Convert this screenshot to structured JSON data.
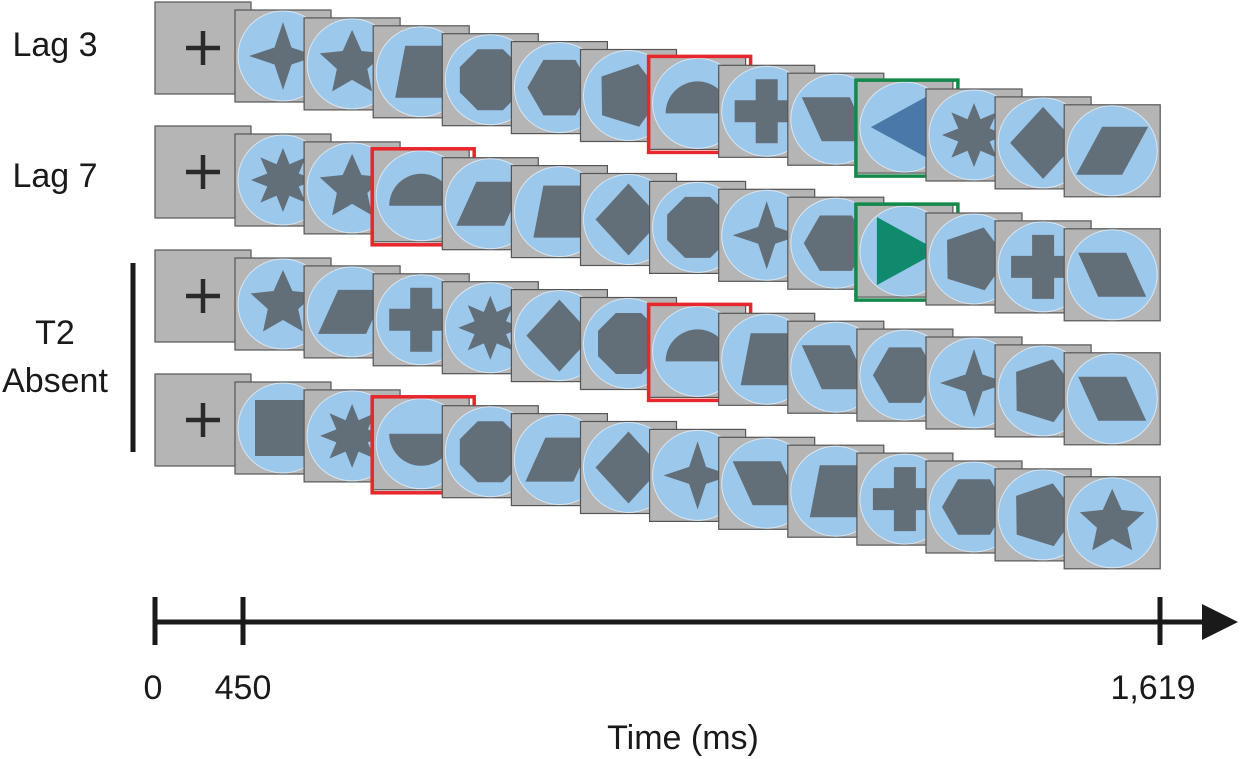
{
  "labels": {
    "lag_3": "Lag 3",
    "lag_7": "Lag 7",
    "t2": "T2",
    "absent": "Absent"
  },
  "timeline": {
    "ticks": [
      "0",
      "450",
      "1,619"
    ],
    "label": "Time (ms)"
  }
}
